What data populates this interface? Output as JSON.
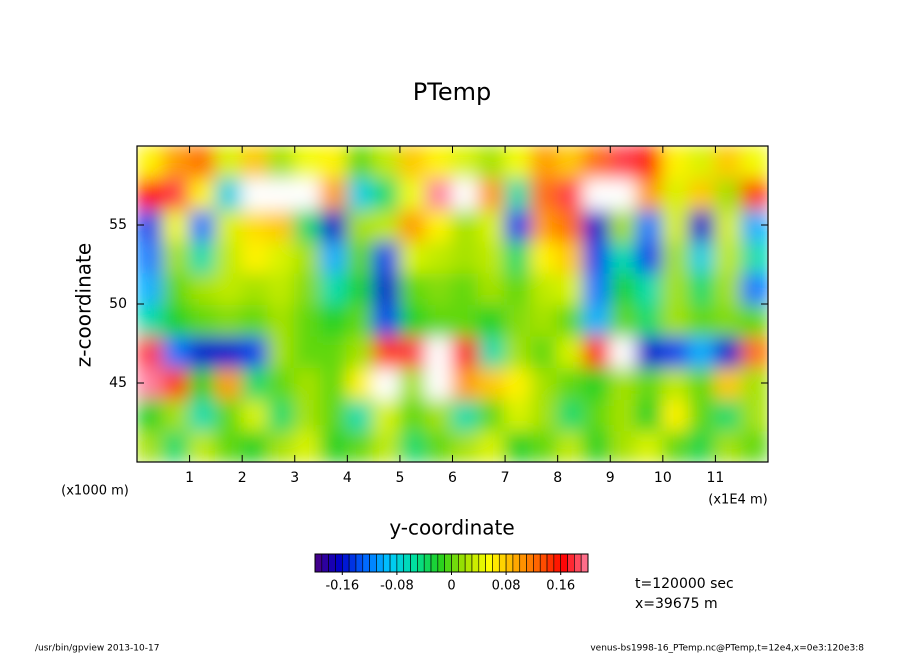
{
  "chart_data": {
    "type": "heatmap",
    "title": "PTemp",
    "x_label": "y-coordinate",
    "y_label": "z-coordinate",
    "x_unit": "(x1E4 m)",
    "y_unit": "(x1000 m)",
    "xlim": [
      0,
      12
    ],
    "xticks": [
      1,
      2,
      3,
      4,
      5,
      6,
      7,
      8,
      9,
      10,
      11
    ],
    "ylim": [
      40,
      60
    ],
    "yticks": [
      45,
      50,
      55
    ],
    "x": [
      0.25,
      0.75,
      1.25,
      1.75,
      2.25,
      2.75,
      3.25,
      3.75,
      4.25,
      4.75,
      5.25,
      5.75,
      6.25,
      6.75,
      7.25,
      7.75,
      8.25,
      8.75,
      9.25,
      9.75,
      10.25,
      10.75,
      11.25,
      11.75
    ],
    "y": [
      41,
      43,
      45,
      47,
      49,
      51,
      53,
      55,
      57,
      59
    ],
    "values": [
      [
        0.02,
        -0.04,
        0.03,
        0.0,
        -0.02,
        0.02,
        0.04,
        -0.02,
        0.0,
        0.03,
        -0.04,
        0.0,
        0.02,
        0.04,
        -0.02,
        0.0,
        0.03,
        -0.02,
        0.02,
        0.04,
        0.0,
        -0.03,
        0.02,
        0.0
      ],
      [
        -0.02,
        0.02,
        -0.06,
        0.0,
        0.04,
        -0.04,
        0.02,
        0.0,
        -0.06,
        0.04,
        0.0,
        0.02,
        -0.06,
        0.0,
        0.04,
        0.02,
        -0.04,
        0.0,
        0.02,
        -0.02,
        0.06,
        0.0,
        -0.04,
        0.02
      ],
      [
        0.2,
        0.14,
        -0.02,
        0.1,
        -0.04,
        0.0,
        0.02,
        0.0,
        0.06,
        0.24,
        0.02,
        0.26,
        0.1,
        0.08,
        0.06,
        0.02,
        0.0,
        -0.02,
        0.02,
        0.0,
        0.03,
        0.0,
        0.08,
        0.02
      ],
      [
        0.18,
        -0.12,
        -0.16,
        -0.16,
        -0.14,
        0.02,
        0.0,
        0.0,
        0.02,
        0.14,
        0.18,
        0.22,
        0.16,
        -0.06,
        0.02,
        0.0,
        0.04,
        0.16,
        0.22,
        -0.16,
        -0.14,
        -0.1,
        -0.16,
        0.12
      ],
      [
        -0.06,
        -0.02,
        0.0,
        0.01,
        0.0,
        0.02,
        0.0,
        -0.02,
        0.0,
        -0.14,
        -0.02,
        0.0,
        0.0,
        -0.02,
        0.01,
        0.02,
        0.0,
        -0.1,
        0.0,
        -0.04,
        0.02,
        0.0,
        0.01,
        0.0
      ],
      [
        -0.1,
        0.0,
        0.02,
        0.03,
        0.02,
        0.03,
        0.01,
        -0.06,
        -0.02,
        -0.16,
        0.0,
        0.01,
        0.0,
        0.02,
        0.0,
        0.03,
        0.04,
        -0.12,
        -0.02,
        -0.06,
        0.02,
        -0.04,
        0.02,
        -0.12
      ],
      [
        -0.12,
        0.02,
        -0.06,
        0.03,
        0.06,
        0.04,
        0.02,
        -0.1,
        0.0,
        -0.14,
        0.04,
        0.03,
        0.02,
        0.03,
        -0.04,
        0.06,
        0.08,
        -0.14,
        -0.06,
        -0.14,
        0.02,
        -0.08,
        0.03,
        -0.06
      ],
      [
        -0.14,
        0.05,
        -0.12,
        0.04,
        0.07,
        0.08,
        -0.04,
        -0.16,
        0.02,
        0.03,
        0.1,
        0.06,
        0.02,
        0.04,
        -0.14,
        0.1,
        0.12,
        -0.16,
        0.02,
        -0.12,
        0.04,
        -0.16,
        0.04,
        -0.1
      ],
      [
        0.16,
        0.18,
        0.06,
        -0.08,
        0.22,
        0.25,
        0.22,
        0.1,
        -0.08,
        -0.04,
        0.05,
        0.2,
        0.22,
        0.1,
        -0.06,
        0.12,
        0.18,
        0.24,
        0.26,
        0.1,
        0.04,
        0.08,
        0.02,
        0.14
      ],
      [
        0.06,
        0.1,
        0.12,
        0.04,
        0.08,
        0.02,
        0.05,
        0.06,
        0.0,
        0.03,
        0.08,
        0.06,
        0.04,
        0.02,
        0.05,
        0.1,
        0.08,
        0.12,
        0.18,
        0.15,
        0.06,
        0.04,
        0.08,
        0.05
      ]
    ],
    "clim": [
      -0.2,
      0.2
    ],
    "cticks": [
      -0.16,
      -0.08,
      0,
      0.08,
      0.16
    ],
    "colorbar_steps": 40,
    "colormap": [
      "#4b0082",
      "#0000c8",
      "#0064ff",
      "#00c8ff",
      "#00e0a0",
      "#20d020",
      "#a0e000",
      "#ffff00",
      "#ffb000",
      "#ff6000",
      "#ff0000",
      "#ff80a0"
    ],
    "over_color": "#ffffff",
    "under_color": "#2a0040",
    "annotations": [
      "t=120000 sec",
      "x=39675 m"
    ],
    "footer_left": "/usr/bin/gpview   2013-10-17",
    "footer_right": "venus-bs1998-16_PTemp.nc@PTemp,t=12e4,x=0e3:120e3:8"
  }
}
